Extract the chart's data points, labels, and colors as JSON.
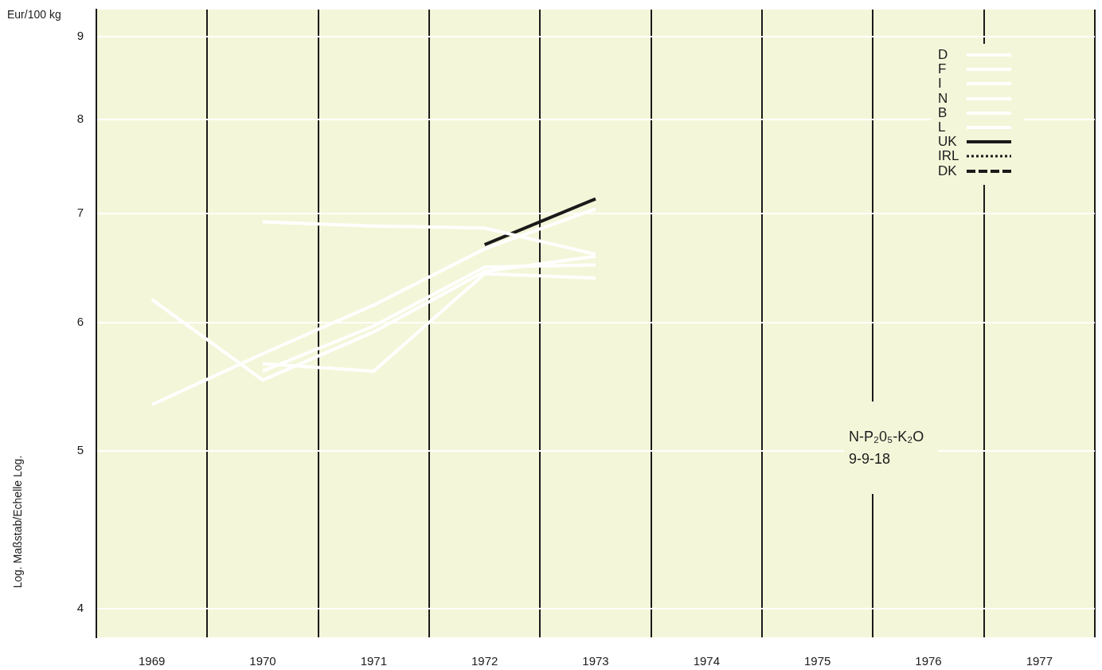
{
  "chart_data": {
    "type": "line",
    "title": "N-P₂0₅-K₂O",
    "subtitle": "9-9-18",
    "ylabel": "Eur/100 kg",
    "annotations": [
      "Log. Maßstab/Echelle Log."
    ],
    "categories": [
      "1969",
      "1970",
      "1971",
      "1972",
      "1973",
      "1974",
      "1975",
      "1976",
      "1977"
    ],
    "series": [
      {
        "name": "D",
        "color": "#ffffff",
        "values": [
          6.2,
          5.53,
          5.92,
          6.45,
          6.59,
          null,
          null,
          null,
          null
        ]
      },
      {
        "name": "F",
        "color": "#ffffff",
        "values": [
          5.34,
          5.74,
          6.15,
          6.66,
          7.05,
          null,
          null,
          null,
          null
        ]
      },
      {
        "name": "I",
        "color": "#ffffff",
        "values": [
          null,
          5.66,
          5.6,
          6.43,
          6.39,
          null,
          null,
          null,
          null
        ]
      },
      {
        "name": "N",
        "color": "#ffffff",
        "values": [
          null,
          5.6,
          5.97,
          6.49,
          6.51,
          null,
          null,
          null,
          null
        ]
      },
      {
        "name": "B",
        "color": "#ffffff",
        "values": [
          null,
          6.92,
          6.88,
          6.86,
          6.61,
          null,
          null,
          null,
          null
        ]
      },
      {
        "name": "L",
        "color": "#ffffff",
        "values": [
          null,
          null,
          null,
          null,
          null,
          null,
          null,
          null,
          null
        ]
      },
      {
        "name": "UK",
        "color": "#1a1a1a",
        "values": [
          null,
          null,
          null,
          6.7,
          7.15,
          null,
          null,
          null,
          null
        ]
      },
      {
        "name": "IRL",
        "color": "#1a1a1a",
        "line_style": "dotted",
        "values": [
          null,
          null,
          null,
          null,
          null,
          null,
          null,
          null,
          null
        ]
      },
      {
        "name": "DK",
        "color": "#1a1a1a",
        "line_style": "dashed",
        "values": [
          null,
          null,
          null,
          null,
          null,
          null,
          null,
          null,
          null
        ]
      }
    ],
    "ylim": [
      3.84,
      9.35
    ],
    "yticks": [
      4,
      5,
      6,
      7,
      8,
      9
    ],
    "log": true,
    "grid": true,
    "legend": "top right"
  }
}
